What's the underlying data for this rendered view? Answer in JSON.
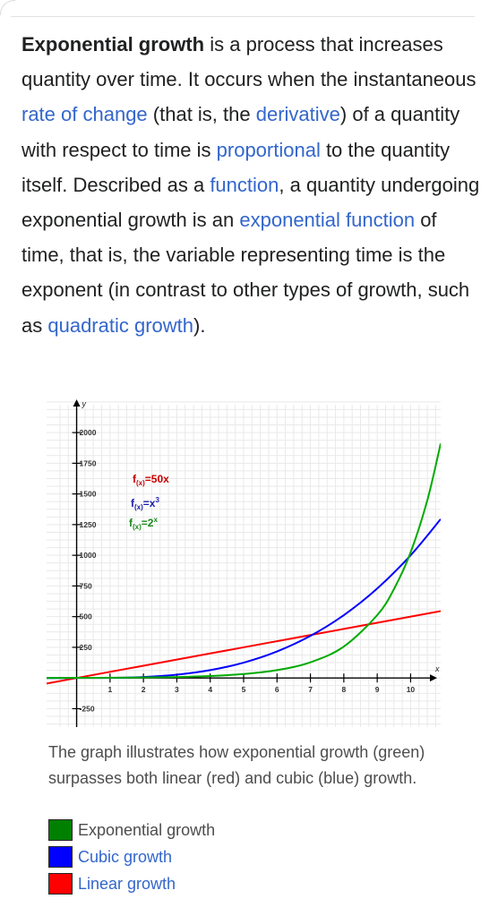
{
  "article": {
    "term": "Exponential growth",
    "s1": " is a process that increases quantity over time. It occurs when the instantaneous ",
    "link_rate": "rate of change",
    "s2": " (that is, the ",
    "link_derivative": "derivative",
    "s3": ") of a quantity with respect to time is ",
    "link_proportional": "proportional",
    "s4": " to the quantity itself. Described as a ",
    "link_function": "function",
    "s5": ", a quantity undergoing exponential growth is an ",
    "link_exp_function": "exponential function",
    "s6": " of time, that is, the variable representing time is the exponent (in contrast to other types of growth, such as ",
    "link_quadratic": "quadratic growth",
    "s7": ")."
  },
  "figure": {
    "caption": "The graph illustrates how exponential growth (green) surpasses both linear (red) and cubic (blue) growth.",
    "legend": [
      {
        "label": "Exponential growth",
        "color": "#008000",
        "style": "plain"
      },
      {
        "label": "Cubic growth",
        "color": "#0000ff",
        "style": "link"
      },
      {
        "label": "Linear growth",
        "color": "#ff0000",
        "style": "link"
      }
    ]
  },
  "chart_data": {
    "type": "line",
    "xlabel": "x",
    "ylabel": "y",
    "xlim": [
      -0.9,
      10.9
    ],
    "ylim": [
      -400,
      2300
    ],
    "x_ticks": [
      1,
      2,
      3,
      4,
      5,
      6,
      7,
      8,
      9,
      10
    ],
    "x_tick_labels": [
      "1",
      "2",
      "3",
      "4",
      "5",
      "6",
      "7",
      "8",
      "9",
      "10"
    ],
    "y_ticks": [
      -250,
      250,
      500,
      750,
      1000,
      1250,
      1500,
      1750,
      2000
    ],
    "y_tick_labels": [
      "-250",
      "250",
      "500",
      "750",
      "1000",
      "1250",
      "1500",
      "1750",
      "2000"
    ],
    "grid": true,
    "series": [
      {
        "label_base": "f",
        "label_sub": "(x)",
        "label_rest": "=50x",
        "label_sup": "",
        "color": "#cc0000",
        "line_color": "#ff0000",
        "x": [
          -0.9,
          0,
          2,
          4,
          6,
          8,
          10.9
        ],
        "y": [
          -45,
          0,
          100,
          200,
          300,
          400,
          545
        ]
      },
      {
        "label_base": "f",
        "label_sub": "(x)",
        "label_rest": "=x",
        "label_sup": "3",
        "color": "#1a1aaa",
        "line_color": "#0000ff",
        "x": [
          -0.9,
          0,
          1,
          2,
          3,
          4,
          5,
          6,
          7,
          8,
          9,
          10,
          10.9
        ],
        "y": [
          -0.7,
          0,
          1,
          8,
          27,
          64,
          125,
          216,
          343,
          512,
          729,
          1000,
          1295
        ]
      },
      {
        "label_base": "f",
        "label_sub": "(x)",
        "label_rest": "=2",
        "label_sup": "x",
        "color": "#1a8a1a",
        "line_color": "#00aa00",
        "x": [
          -0.9,
          0,
          1,
          2,
          3,
          4,
          5,
          6,
          7,
          8,
          9,
          9.5,
          10,
          10.5,
          10.9
        ],
        "y": [
          0.5,
          1,
          2,
          4,
          8,
          16,
          32,
          64,
          128,
          256,
          512,
          724,
          1024,
          1448,
          1911
        ]
      }
    ]
  }
}
